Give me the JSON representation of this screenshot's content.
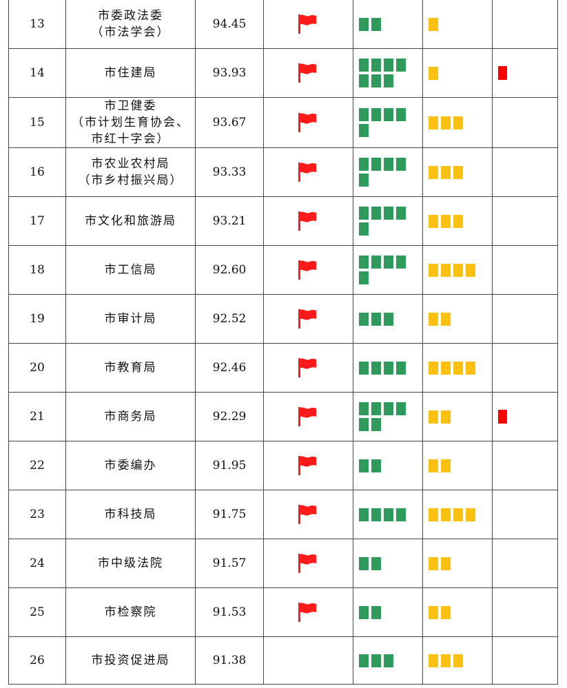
{
  "rows": [
    {
      "rank": "13",
      "name": [
        "市委政法委",
        "（市法学会）"
      ],
      "score": "94.45",
      "flag": true,
      "green": 2,
      "yellow": 1,
      "red": 0
    },
    {
      "rank": "14",
      "name": [
        "市住建局"
      ],
      "score": "93.93",
      "flag": true,
      "green": 7,
      "yellow": 1,
      "red": 1
    },
    {
      "rank": "15",
      "name": [
        "市卫健委",
        "（市计划生育协会、",
        "市红十字会）"
      ],
      "score": "93.67",
      "flag": true,
      "green": 5,
      "yellow": 3,
      "red": 0
    },
    {
      "rank": "16",
      "name": [
        "市农业农村局",
        "（市乡村振兴局）"
      ],
      "score": "93.33",
      "flag": true,
      "green": 5,
      "yellow": 3,
      "red": 0
    },
    {
      "rank": "17",
      "name": [
        "市文化和旅游局"
      ],
      "score": "93.21",
      "flag": true,
      "green": 5,
      "yellow": 3,
      "red": 0
    },
    {
      "rank": "18",
      "name": [
        "市工信局"
      ],
      "score": "92.60",
      "flag": true,
      "green": 5,
      "yellow": 4,
      "red": 0
    },
    {
      "rank": "19",
      "name": [
        "市审计局"
      ],
      "score": "92.52",
      "flag": true,
      "green": 3,
      "yellow": 2,
      "red": 0
    },
    {
      "rank": "20",
      "name": [
        "市教育局"
      ],
      "score": "92.46",
      "flag": true,
      "green": 4,
      "yellow": 4,
      "red": 0
    },
    {
      "rank": "21",
      "name": [
        "市商务局"
      ],
      "score": "92.29",
      "flag": true,
      "green": 6,
      "yellow": 2,
      "red": 1
    },
    {
      "rank": "22",
      "name": [
        "市委编办"
      ],
      "score": "91.95",
      "flag": true,
      "green": 2,
      "yellow": 2,
      "red": 0
    },
    {
      "rank": "23",
      "name": [
        "市科技局"
      ],
      "score": "91.75",
      "flag": true,
      "green": 4,
      "yellow": 4,
      "red": 0
    },
    {
      "rank": "24",
      "name": [
        "市中级法院"
      ],
      "score": "91.57",
      "flag": true,
      "green": 2,
      "yellow": 2,
      "red": 0
    },
    {
      "rank": "25",
      "name": [
        "市检察院"
      ],
      "score": "91.53",
      "flag": true,
      "green": 2,
      "yellow": 2,
      "red": 0
    },
    {
      "rank": "26",
      "name": [
        "市投资促进局"
      ],
      "score": "91.38",
      "flag": false,
      "green": 3,
      "yellow": 3,
      "red": 0
    }
  ],
  "colors": {
    "green": "#2e9a5c",
    "yellow": "#fcc010",
    "red": "#ff0000",
    "flag": "#ff1a1a"
  },
  "icons": {
    "flag": "red-flag-icon"
  }
}
